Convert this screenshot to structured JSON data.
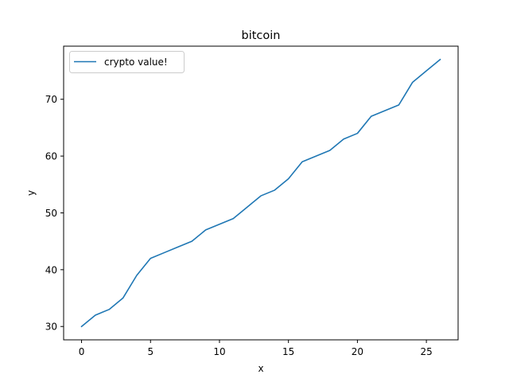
{
  "chart_data": {
    "type": "line",
    "title": "bitcoin",
    "xlabel": "x",
    "ylabel": "y",
    "xlim": [
      -1.3,
      27.3
    ],
    "ylim": [
      27.65,
      79.35
    ],
    "xticks": [
      0,
      5,
      10,
      15,
      20,
      25
    ],
    "yticks": [
      30,
      40,
      50,
      60,
      70
    ],
    "grid": false,
    "legend_position": "top-left",
    "series": [
      {
        "name": "crypto value!",
        "color": "#1f77b4",
        "x": [
          0,
          1,
          2,
          3,
          4,
          5,
          6,
          7,
          8,
          9,
          10,
          11,
          12,
          13,
          14,
          15,
          16,
          17,
          18,
          19,
          20,
          21,
          22,
          23,
          24,
          25,
          26
        ],
        "y": [
          30,
          32,
          33,
          35,
          39,
          42,
          43,
          44,
          45,
          47,
          48,
          49,
          51,
          53,
          54,
          56,
          59,
          60,
          61,
          63,
          64,
          67,
          68,
          69,
          73,
          75,
          77
        ]
      }
    ]
  }
}
